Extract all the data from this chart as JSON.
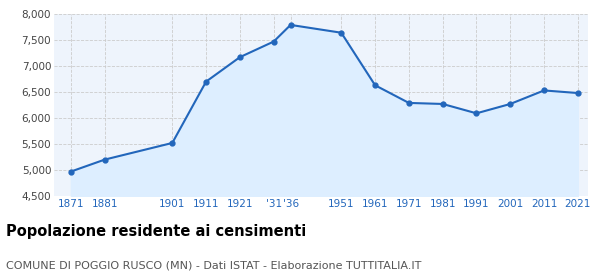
{
  "years": [
    1871,
    1881,
    1901,
    1911,
    1921,
    1931,
    1936,
    1951,
    1961,
    1971,
    1981,
    1991,
    2001,
    2011,
    2021
  ],
  "population": [
    4970,
    5200,
    5520,
    6700,
    7170,
    7470,
    7790,
    7640,
    6630,
    6290,
    6270,
    6090,
    6270,
    6530,
    6480
  ],
  "line_color": "#2266bb",
  "fill_color": "#ddeeff",
  "marker_color": "#2266bb",
  "grid_color": "#cccccc",
  "background_color": "#eef4fc",
  "ylim": [
    4500,
    8000
  ],
  "yticks": [
    4500,
    5000,
    5500,
    6000,
    6500,
    7000,
    7500,
    8000
  ],
  "xlim_left": 1866,
  "xlim_right": 2024,
  "title": "Popolazione residente ai censimenti",
  "subtitle": "COMUNE DI POGGIO RUSCO (MN) - Dati ISTAT - Elaborazione TUTTITALIA.IT",
  "title_fontsize": 10.5,
  "subtitle_fontsize": 8.0,
  "tick_fontsize": 7.5
}
